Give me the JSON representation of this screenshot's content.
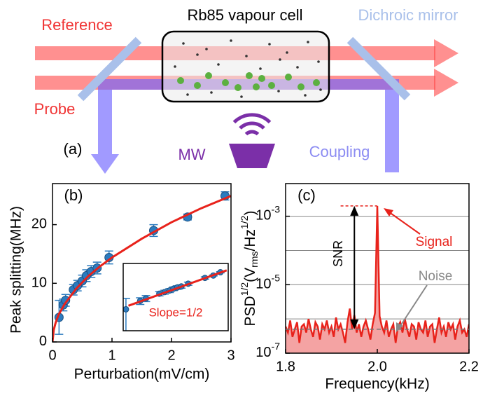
{
  "diagram": {
    "cell": "Rb85 vapour cell",
    "mirror": "Dichroic mirror",
    "reference": "Reference",
    "probe": "Probe",
    "panel": "(a)",
    "mw": "MW",
    "coupling": "Coupling"
  },
  "chart_data": [
    {
      "type": "scatter",
      "panel": "(b)",
      "xlabel": "Perturbation(mV/cm)",
      "ylabel": "Peak splitting(MHz)",
      "xlim": [
        0,
        3
      ],
      "ylim": [
        0,
        27
      ],
      "xticks": [
        0,
        1,
        2,
        3
      ],
      "yticks": [
        0,
        10,
        20
      ],
      "series": [
        {
          "type": "scatter",
          "color": "#2b7bbf",
          "x": [
            0.11,
            0.18,
            0.22,
            0.35,
            0.42,
            0.5,
            0.57,
            0.65,
            0.75,
            0.95,
            1.7,
            2.27,
            2.9
          ],
          "values": [
            4.2,
            6.3,
            7.1,
            8.9,
            9.6,
            10.4,
            11.3,
            12.0,
            12.6,
            14.4,
            19.0,
            21.3,
            24.9
          ],
          "errors": [
            2.9,
            1.0,
            1.0,
            0.9,
            0.9,
            1.0,
            1.0,
            1.0,
            1.0,
            1.1,
            1.0,
            0.5,
            0.7
          ]
        },
        {
          "type": "line",
          "color": "#e8221b",
          "x": [
            0,
            0.02,
            0.05,
            0.1,
            0.2,
            0.4,
            0.6,
            0.8,
            1,
            1.5,
            2,
            2.5,
            3
          ],
          "values": [
            0,
            2.0,
            3.2,
            4.6,
            6.4,
            9.1,
            11.2,
            12.9,
            14.4,
            17.6,
            20.4,
            22.8,
            24.9
          ]
        }
      ]
    },
    {
      "type": "scatter",
      "log_x": true,
      "log_y": true,
      "xlim": [
        0.1,
        3.8
      ],
      "ylim": [
        1.5,
        38
      ],
      "annotation": "Slope=1/2",
      "series": [
        {
          "type": "scatter",
          "color": "#2b7bbf",
          "x": [
            0.11,
            0.18,
            0.22,
            0.35,
            0.42,
            0.5,
            0.57,
            0.65,
            0.75,
            0.95,
            1.7,
            2.27,
            2.9
          ],
          "values": [
            4.2,
            6.3,
            7.1,
            8.9,
            9.6,
            10.4,
            11.3,
            12.0,
            12.6,
            14.4,
            19.0,
            21.3,
            24.9
          ],
          "errors": [
            2.9,
            1.0,
            1.0,
            0.9,
            0.9,
            1.0,
            1.0,
            1.0,
            1.0,
            1.1,
            1.0,
            0.5,
            0.7
          ]
        },
        {
          "type": "line",
          "color": "#e8221b",
          "x": [
            0.12,
            3.6
          ],
          "values": [
            4.99,
            27.3
          ]
        }
      ]
    },
    {
      "type": "line",
      "panel": "(c)",
      "xlabel": "Frequency(kHz)",
      "ylabel_parts": [
        {
          "text": "PSD"
        },
        {
          "text": "1/2",
          "shift": "super"
        },
        {
          "text": "(V"
        },
        {
          "text": "rms",
          "shift": "sub"
        },
        {
          "text": "/Hz"
        },
        {
          "text": "1/2",
          "shift": "super"
        },
        {
          "text": ")"
        }
      ],
      "log_y": true,
      "xlim": [
        1.8,
        2.2
      ],
      "xticks": [
        1.8,
        {
          "value": 2,
          "label": "2.0"
        },
        2.2
      ],
      "ylim": [
        1e-07,
        0.009
      ],
      "yticks": [
        {
          "value": 1e-07,
          "label": "10",
          "exponent": "-7"
        },
        {
          "value": 1e-05,
          "label": "10",
          "exponent": "-5"
        },
        {
          "value": 0.001,
          "label": "10",
          "exponent": "-3"
        }
      ],
      "minor_yticks": [
        1e-06,
        0.0001
      ],
      "grid": true,
      "noise_level": 5e-07,
      "annotations": {
        "signal": "Signal",
        "noise": "Noise",
        "snr": "SNR"
      },
      "series": [
        {
          "type": "line",
          "color": "#e8221b",
          "fill": "#f4a3a3",
          "x": [
            1.8,
            1.805,
            1.81,
            1.815,
            1.82,
            1.825,
            1.83,
            1.835,
            1.84,
            1.845,
            1.85,
            1.855,
            1.86,
            1.865,
            1.87,
            1.875,
            1.88,
            1.885,
            1.89,
            1.895,
            1.9,
            1.905,
            1.91,
            1.915,
            1.92,
            1.925,
            1.93,
            1.935,
            1.94,
            1.945,
            1.95,
            1.955,
            1.96,
            1.965,
            1.97,
            1.975,
            1.98,
            1.985,
            1.99,
            1.995,
            2,
            2.005,
            2.01,
            2.015,
            2.02,
            2.025,
            2.03,
            2.035,
            2.04,
            2.045,
            2.05,
            2.055,
            2.06,
            2.065,
            2.07,
            2.075,
            2.08,
            2.085,
            2.09,
            2.095,
            2.1,
            2.105,
            2.11,
            2.115,
            2.12,
            2.125,
            2.13,
            2.135,
            2.14,
            2.145,
            2.15,
            2.155,
            2.16,
            2.165,
            2.17,
            2.175,
            2.18,
            2.185,
            2.19,
            2.195,
            2.2
          ],
          "values": [
            6e-07,
            4e-07,
            9e-07,
            3e-07,
            5e-07,
            8e-07,
            2e-07,
            6e-07,
            7e-07,
            4e-07,
            1e-06,
            5e-07,
            3e-07,
            8e-07,
            6e-07,
            2.5e-07,
            7e-07,
            5e-07,
            9e-07,
            4e-07,
            6e-07,
            3e-07,
            1.1e-06,
            5e-07,
            7e-07,
            4e-07,
            2e-07,
            8e-07,
            2e-06,
            5e-07,
            1.3e-06,
            4e-07,
            7e-07,
            3e-07,
            6e-07,
            9e-07,
            5e-07,
            2.5e-07,
            7e-07,
            1.5e-06,
            0.002,
            1.2e-06,
            6e-07,
            4e-07,
            9e-07,
            3e-07,
            5e-07,
            7e-07,
            2e-07,
            6e-07,
            8e-07,
            4e-07,
            1e-06,
            5e-07,
            3e-07,
            7e-07,
            6e-07,
            2.5e-07,
            8e-07,
            5e-07,
            4e-07,
            9e-07,
            3e-07,
            6e-07,
            7e-07,
            2e-07,
            5e-07,
            1.1e-06,
            4e-07,
            6e-07,
            3e-07,
            8e-07,
            5e-07,
            7e-07,
            2.5e-07,
            6e-07,
            9e-07,
            4e-07,
            5e-07,
            3e-07,
            7e-07
          ]
        }
      ]
    }
  ]
}
